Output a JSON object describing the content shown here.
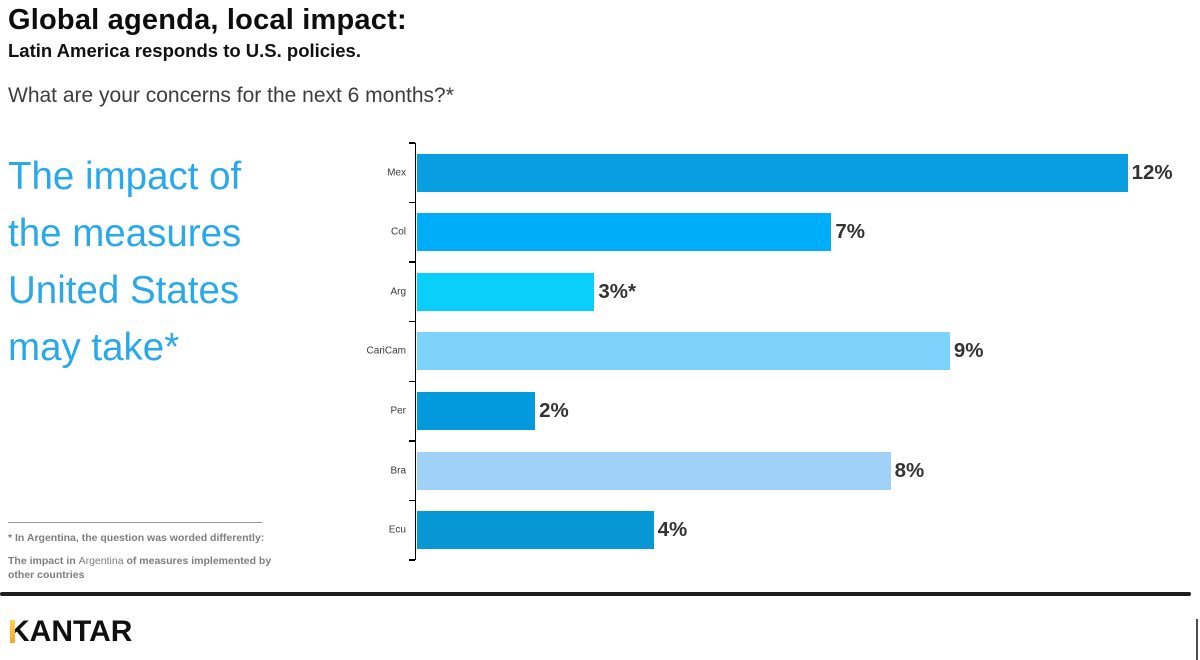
{
  "header": {
    "title": "Global agenda, local impact:",
    "subtitle": "Latin America responds to U.S. policies.",
    "question": "What are your concerns for the next 6 months?*"
  },
  "highlight": {
    "text": "The impact of the measures United States may take*",
    "color": "#29a9ea"
  },
  "footnote": {
    "line1": "* In Argentina, the question was worded differently:",
    "line2_bold_prefix": "The impact in ",
    "line2_regular": "Argentina",
    "line2_bold_suffix": " of measures implemented by other countries"
  },
  "chart_data": {
    "type": "bar",
    "orientation": "horizontal",
    "title": "What are your concerns for the next 6 months?*",
    "categories": [
      "Mex",
      "Col",
      "Arg",
      "CariCam",
      "Per",
      "Bra",
      "Ecu"
    ],
    "values": [
      12,
      7,
      3,
      9,
      2,
      8,
      4
    ],
    "value_labels": [
      "12%",
      "7%",
      "3%*",
      "9%",
      "2%",
      "8%",
      "4%"
    ],
    "bar_colors": [
      "#089ee0",
      "#00aef8",
      "#0acffb",
      "#7dd2fa",
      "#0399dd",
      "#9fd2f6",
      "#0697d4"
    ],
    "xlim": [
      0,
      12
    ],
    "xlabel": "",
    "ylabel": "",
    "grid": false,
    "legend": false,
    "value_label_position": "end-of-bar"
  },
  "footer": {
    "brand": "KANTAR",
    "brand_accent_color": "#f0a832"
  }
}
